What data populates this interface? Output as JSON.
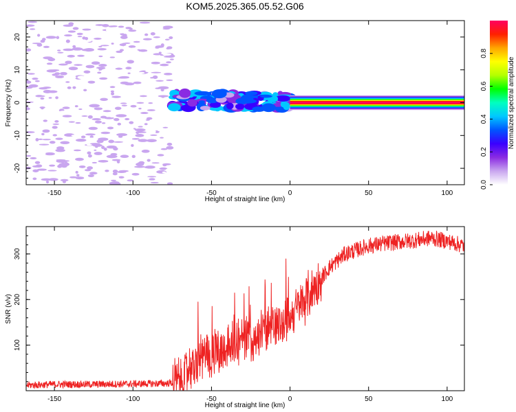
{
  "figure": {
    "title": "KOM5.2025.365.05.52.G06"
  },
  "chart_data": [
    {
      "type": "heatmap",
      "name": "spectrogram",
      "xlabel": "Height of straight line (km)",
      "ylabel": "Frequency (Hz)",
      "xlim": [
        -168,
        111
      ],
      "ylim": [
        -25,
        25
      ],
      "xticks": [
        -150,
        -100,
        -50,
        0,
        50,
        100
      ],
      "yticks": [
        -20,
        -10,
        0,
        10,
        20
      ],
      "colorbar": {
        "label": "Normalized spectral amplitude",
        "range": [
          0,
          1
        ],
        "ticks": [
          0.0,
          0.2,
          0.4,
          0.6,
          0.8
        ],
        "colors": [
          "#ffffff",
          "#c9a6ef",
          "#8a2be2",
          "#3a00ff",
          "#0055ff",
          "#00c8ff",
          "#00ffc0",
          "#00ff00",
          "#b4ff00",
          "#ffff00",
          "#ffa500",
          "#ff2000",
          "#ff0060"
        ]
      },
      "regions": [
        {
          "name": "noise",
          "x_range": [
            -168,
            -75
          ],
          "amplitude_range": [
            0.02,
            0.12
          ]
        },
        {
          "name": "transition",
          "x_range": [
            -75,
            0
          ],
          "freq_center": 0.5,
          "amplitude_range": [
            0.1,
            0.45
          ]
        },
        {
          "name": "signal",
          "x_range": [
            0,
            111
          ],
          "freq_center": 0,
          "peak_amplitude": 1.0
        }
      ]
    },
    {
      "type": "line",
      "name": "snr",
      "xlabel": "Height of straight line (km)",
      "ylabel": "SNR (v/v)",
      "xlim": [
        -168,
        111
      ],
      "ylim": [
        0,
        360
      ],
      "xticks": [
        -150,
        -100,
        -50,
        0,
        50,
        100
      ],
      "yticks": [
        100,
        200,
        300
      ],
      "color": "#ee2222",
      "series": [
        {
          "name": "SNR",
          "x": [
            -168,
            -150,
            -125,
            -100,
            -80,
            -72,
            -65,
            -55,
            -45,
            -35,
            -25,
            -15,
            -5,
            5,
            15,
            25,
            35,
            50,
            65,
            80,
            90,
            100,
            111
          ],
          "y": [
            12,
            14,
            14,
            15,
            16,
            18,
            40,
            75,
            90,
            105,
            115,
            130,
            150,
            180,
            225,
            270,
            300,
            318,
            325,
            330,
            335,
            328,
            318
          ]
        }
      ]
    }
  ]
}
